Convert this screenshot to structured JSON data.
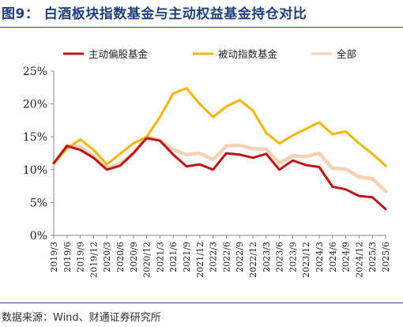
{
  "title": "图9：  白酒板块指数基金与主动权益基金持仓对比",
  "source": "数据来源：Wind、财通证券研究所",
  "chart_data": {
    "type": "line",
    "categories": [
      "2019/3",
      "2019/6",
      "2019/9",
      "2019/12",
      "2020/3",
      "2020/6",
      "2020/9",
      "2020/12",
      "2021/3",
      "2021/6",
      "2021/9",
      "2021/12",
      "2022/3",
      "2022/6",
      "2022/9",
      "2022/12",
      "2023/3",
      "2023/6",
      "2023/9",
      "2023/12",
      "2024/3",
      "2024/6",
      "2024/9",
      "2024/12",
      "2025/3",
      "2025/6"
    ],
    "yticks": [
      "0%",
      "5%",
      "10%",
      "15%",
      "20%",
      "25%"
    ],
    "ylim": [
      0,
      25
    ],
    "grid": false,
    "legend_position": "top",
    "series": [
      {
        "name": "主动偏股基金",
        "color": "#c0141c",
        "values": [
          11.0,
          13.6,
          13.0,
          11.8,
          10.0,
          10.6,
          12.5,
          14.8,
          14.4,
          12.3,
          10.5,
          10.8,
          10.0,
          12.5,
          12.3,
          11.8,
          12.4,
          10.0,
          11.4,
          10.7,
          10.4,
          7.4,
          7.0,
          6.0,
          5.8,
          4.0
        ]
      },
      {
        "name": "被动指数基金",
        "color": "#f2b705",
        "values": [
          11.0,
          13.2,
          14.6,
          13.0,
          10.8,
          12.4,
          14.0,
          15.0,
          18.0,
          21.6,
          22.4,
          20.0,
          18.0,
          19.6,
          20.6,
          19.0,
          15.6,
          14.0,
          15.2,
          16.2,
          17.2,
          15.4,
          15.8,
          14.0,
          12.4,
          10.6
        ]
      },
      {
        "name": "全部",
        "color": "#f6d2b4",
        "values": [
          10.8,
          13.7,
          13.5,
          12.0,
          10.2,
          10.9,
          12.5,
          15.0,
          14.5,
          13.0,
          12.3,
          12.5,
          11.5,
          13.6,
          13.7,
          13.2,
          13.1,
          11.0,
          12.1,
          12.0,
          12.5,
          10.2,
          10.1,
          8.9,
          8.6,
          6.7
        ]
      }
    ]
  }
}
